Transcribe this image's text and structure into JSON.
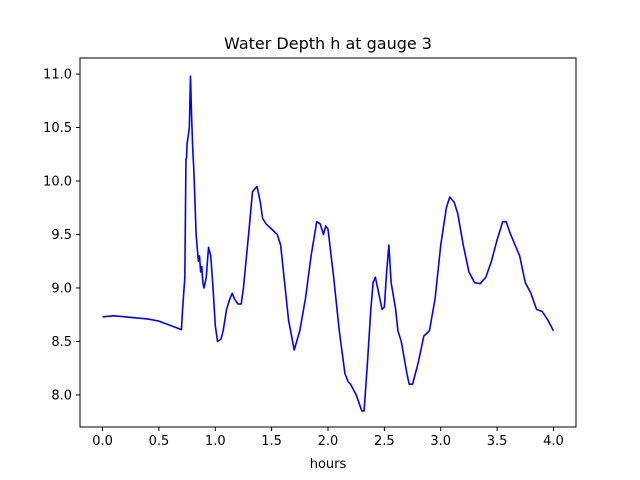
{
  "chart_data": {
    "type": "line",
    "title": "Water Depth h at gauge 3",
    "xlabel": "hours",
    "ylabel": "",
    "xlim": [
      -0.2,
      4.2
    ],
    "ylim": [
      7.7,
      11.15
    ],
    "xticks": [
      0.0,
      0.5,
      1.0,
      1.5,
      2.0,
      2.5,
      3.0,
      3.5,
      4.0
    ],
    "xtick_labels": [
      "0.0",
      "0.5",
      "1.0",
      "1.5",
      "2.0",
      "2.5",
      "3.0",
      "3.5",
      "4.0"
    ],
    "yticks": [
      8.0,
      8.5,
      9.0,
      9.5,
      10.0,
      10.5,
      11.0
    ],
    "ytick_labels": [
      "8.0",
      "8.5",
      "9.0",
      "9.5",
      "10.0",
      "10.5",
      "11.0"
    ],
    "grid": false,
    "legend": "none",
    "series": [
      {
        "color": "#0000ff",
        "x": [
          0.0,
          0.1,
          0.2,
          0.3,
          0.4,
          0.5,
          0.6,
          0.7,
          0.71,
          0.73,
          0.74,
          0.745,
          0.75,
          0.76,
          0.77,
          0.78,
          0.79,
          0.8,
          0.81,
          0.83,
          0.85,
          0.86,
          0.87,
          0.88,
          0.89,
          0.9,
          0.92,
          0.94,
          0.96,
          0.98,
          1.0,
          1.02,
          1.05,
          1.07,
          1.1,
          1.13,
          1.15,
          1.17,
          1.2,
          1.23,
          1.25,
          1.3,
          1.33,
          1.37,
          1.4,
          1.42,
          1.45,
          1.5,
          1.55,
          1.58,
          1.6,
          1.65,
          1.7,
          1.75,
          1.8,
          1.85,
          1.9,
          1.93,
          1.96,
          1.98,
          2.0,
          2.05,
          2.1,
          2.15,
          2.18,
          2.2,
          2.25,
          2.3,
          2.32,
          2.35,
          2.38,
          2.4,
          2.42,
          2.45,
          2.48,
          2.5,
          2.52,
          2.54,
          2.56,
          2.6,
          2.62,
          2.65,
          2.7,
          2.72,
          2.75,
          2.8,
          2.85,
          2.9,
          2.95,
          3.0,
          3.05,
          3.08,
          3.12,
          3.15,
          3.2,
          3.25,
          3.3,
          3.35,
          3.4,
          3.45,
          3.5,
          3.55,
          3.58,
          3.62,
          3.7,
          3.75,
          3.8,
          3.85,
          3.9,
          3.95,
          4.0
        ],
        "y": [
          8.73,
          8.74,
          8.73,
          8.72,
          8.71,
          8.69,
          8.65,
          8.61,
          8.8,
          9.1,
          10.2,
          10.22,
          10.35,
          10.42,
          10.5,
          10.98,
          10.6,
          10.3,
          10.1,
          9.5,
          9.25,
          9.3,
          9.15,
          9.2,
          9.05,
          9.0,
          9.1,
          9.38,
          9.3,
          9.0,
          8.65,
          8.5,
          8.52,
          8.6,
          8.8,
          8.9,
          8.95,
          8.9,
          8.85,
          8.85,
          9.0,
          9.55,
          9.9,
          9.95,
          9.8,
          9.65,
          9.6,
          9.55,
          9.5,
          9.4,
          9.2,
          8.7,
          8.42,
          8.6,
          8.9,
          9.3,
          9.62,
          9.6,
          9.5,
          9.58,
          9.55,
          9.1,
          8.6,
          8.2,
          8.12,
          8.1,
          8.0,
          7.85,
          7.85,
          8.3,
          8.8,
          9.05,
          9.1,
          8.95,
          8.8,
          8.82,
          9.15,
          9.4,
          9.05,
          8.8,
          8.6,
          8.5,
          8.2,
          8.1,
          8.1,
          8.3,
          8.55,
          8.6,
          8.9,
          9.4,
          9.75,
          9.85,
          9.8,
          9.7,
          9.4,
          9.15,
          9.05,
          9.04,
          9.1,
          9.25,
          9.45,
          9.62,
          9.62,
          9.5,
          9.3,
          9.05,
          8.95,
          8.8,
          8.78,
          8.7,
          8.6
        ]
      }
    ]
  }
}
